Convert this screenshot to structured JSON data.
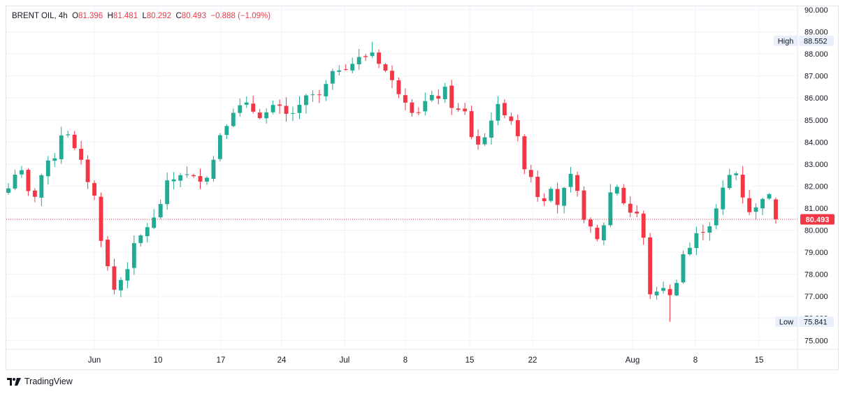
{
  "legend": {
    "symbol": "BRENT OIL",
    "interval": "4h",
    "open_label": "O",
    "open": "81.396",
    "high_label": "H",
    "high": "81.481",
    "low_label": "L",
    "low": "80.292",
    "close_label": "C",
    "close": "80.493",
    "change": "−0.888 (−1.09%)"
  },
  "brand": {
    "name": "TradingView",
    "logo_icon": "tradingview-logo-icon"
  },
  "markers": {
    "high": {
      "label": "High",
      "value": "88.552"
    },
    "low": {
      "label": "Low",
      "value": "75.841"
    },
    "last": {
      "value": "80.493"
    }
  },
  "colors": {
    "up": "#22ab94",
    "down": "#f23645",
    "grid": "#f0f3fa",
    "text": "#131722"
  },
  "chart_data": {
    "type": "candlestick",
    "y_axis": {
      "min": 75.0,
      "max": 90.0,
      "ticks": [
        "75.000",
        "76.000",
        "77.000",
        "78.000",
        "79.000",
        "80.000",
        "81.000",
        "82.000",
        "83.000",
        "84.000",
        "85.000",
        "86.000",
        "87.000",
        "88.000",
        "89.000",
        "90.000"
      ]
    },
    "x_axis": {
      "ticks": [
        "Jun",
        "10",
        "17",
        "24",
        "Jul",
        "8",
        "15",
        "22",
        "Aug",
        "8",
        "15"
      ]
    },
    "grid": true,
    "last_price": 80.493,
    "close_path": [
      {
        "t": 0,
        "v": 81.9
      },
      {
        "t": 1.5,
        "v": 83.0
      },
      {
        "t": 3.5,
        "v": 81.2
      },
      {
        "t": 5,
        "v": 82.5
      },
      {
        "t": 7,
        "v": 83.4
      },
      {
        "t": 8.5,
        "v": 84.9
      },
      {
        "t": 10,
        "v": 83.6
      },
      {
        "t": 11.5,
        "v": 82.7
      },
      {
        "t": 13,
        "v": 81.5
      },
      {
        "t": 14.5,
        "v": 78.8
      },
      {
        "t": 16,
        "v": 77.3
      },
      {
        "t": 17.5,
        "v": 78.0
      },
      {
        "t": 19,
        "v": 79.2
      },
      {
        "t": 21,
        "v": 80.2
      },
      {
        "t": 22.5,
        "v": 80.6
      },
      {
        "t": 23.5,
        "v": 81.9
      },
      {
        "t": 26,
        "v": 82.6
      },
      {
        "t": 28,
        "v": 82.3
      },
      {
        "t": 30.5,
        "v": 82.6
      },
      {
        "t": 32,
        "v": 84.4
      },
      {
        "t": 34,
        "v": 85.5
      },
      {
        "t": 36,
        "v": 85.6
      },
      {
        "t": 38.5,
        "v": 85.2
      },
      {
        "t": 40.5,
        "v": 85.6
      },
      {
        "t": 42,
        "v": 85.2
      },
      {
        "t": 44,
        "v": 85.5
      },
      {
        "t": 45.5,
        "v": 86.2
      },
      {
        "t": 47,
        "v": 86.0
      },
      {
        "t": 48.5,
        "v": 86.8
      },
      {
        "t": 50,
        "v": 87.4
      },
      {
        "t": 52,
        "v": 87.6
      },
      {
        "t": 54,
        "v": 87.9
      },
      {
        "t": 55,
        "v": 88.1
      },
      {
        "t": 56.5,
        "v": 87.5
      },
      {
        "t": 58,
        "v": 86.7
      },
      {
        "t": 60,
        "v": 86.0
      },
      {
        "t": 61.5,
        "v": 85.3
      },
      {
        "t": 63,
        "v": 85.8
      },
      {
        "t": 64.5,
        "v": 86.0
      },
      {
        "t": 66,
        "v": 86.3
      },
      {
        "t": 67.5,
        "v": 85.4
      },
      {
        "t": 69,
        "v": 85.3
      },
      {
        "t": 70.5,
        "v": 83.8
      },
      {
        "t": 72,
        "v": 84.2
      },
      {
        "t": 73.5,
        "v": 85.6
      },
      {
        "t": 75,
        "v": 85.4
      },
      {
        "t": 76.5,
        "v": 84.9
      },
      {
        "t": 77.5,
        "v": 83.2
      },
      {
        "t": 79,
        "v": 82.5
      },
      {
        "t": 80.5,
        "v": 81.2
      },
      {
        "t": 82,
        "v": 82.1
      },
      {
        "t": 83.5,
        "v": 80.8
      },
      {
        "t": 84.5,
        "v": 82.7
      },
      {
        "t": 86,
        "v": 81.6
      },
      {
        "t": 87.5,
        "v": 80.2
      },
      {
        "t": 89,
        "v": 79.5
      },
      {
        "t": 90,
        "v": 80.3
      },
      {
        "t": 91.5,
        "v": 82.4
      },
      {
        "t": 93,
        "v": 81.3
      },
      {
        "t": 94.5,
        "v": 80.6
      },
      {
        "t": 95.5,
        "v": 80.9
      },
      {
        "t": 96.5,
        "v": 78.2
      },
      {
        "t": 97.5,
        "v": 76.2
      },
      {
        "t": 98.5,
        "v": 77.9
      },
      {
        "t": 99.5,
        "v": 77.1
      },
      {
        "t": 100.5,
        "v": 76.8
      },
      {
        "t": 101.5,
        "v": 78.8
      },
      {
        "t": 103,
        "v": 79.2
      },
      {
        "t": 104.5,
        "v": 80.0
      },
      {
        "t": 106,
        "v": 80.3
      },
      {
        "t": 107.5,
        "v": 81.2
      },
      {
        "t": 108.5,
        "v": 82.4
      },
      {
        "t": 110,
        "v": 82.6
      },
      {
        "t": 111,
        "v": 81.6
      },
      {
        "t": 112.5,
        "v": 80.6
      },
      {
        "t": 114,
        "v": 81.6
      },
      {
        "t": 115.5,
        "v": 81.4
      },
      {
        "t": 116.5,
        "v": 80.493
      }
    ]
  }
}
